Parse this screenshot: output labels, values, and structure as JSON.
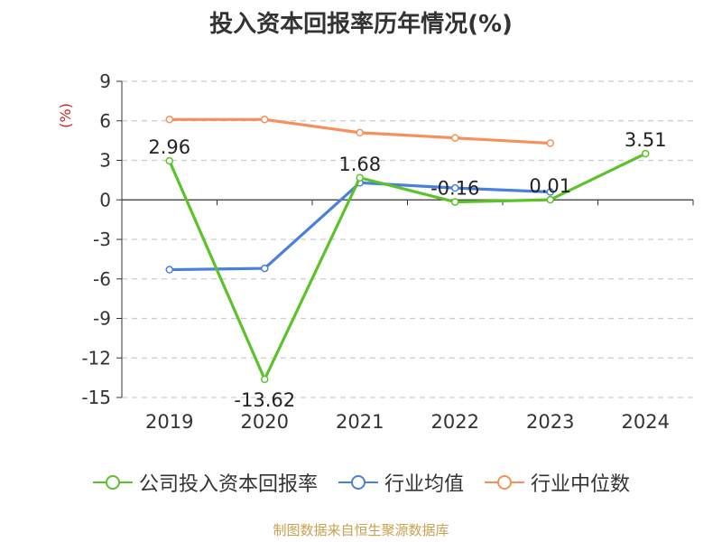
{
  "chart_data": {
    "type": "line",
    "title": "投入资本回报率历年情况(%)",
    "ylabel": "(%)",
    "xlabel": "",
    "categories": [
      "2019",
      "2020",
      "2021",
      "2022",
      "2023",
      "2024"
    ],
    "ylim": [
      -15,
      9
    ],
    "yticks": [
      "9",
      "6",
      "3",
      "0",
      "-3",
      "-6",
      "-9",
      "-12",
      "-15"
    ],
    "grid": true,
    "legend_position": "bottom",
    "series": [
      {
        "name": "公司投入资本回报率",
        "color": "#5cc22a",
        "values": [
          2.96,
          -13.62,
          1.68,
          -0.16,
          0.01,
          3.51
        ],
        "labels": [
          "2.96",
          "-13.62",
          "1.68",
          "-0.16",
          "0.01",
          "3.51"
        ]
      },
      {
        "name": "行业均值",
        "color": "#4a7fdb",
        "values": [
          -5.3,
          -5.2,
          1.3,
          0.9,
          0.6,
          null
        ]
      },
      {
        "name": "行业中位数",
        "color": "#f78f5a",
        "values": [
          6.1,
          6.1,
          5.1,
          4.7,
          4.3,
          null
        ]
      }
    ]
  },
  "source": "制图数据来自恒生聚源数据库"
}
